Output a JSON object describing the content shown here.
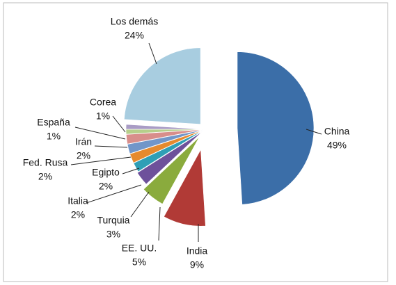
{
  "chart_data": {
    "type": "pie",
    "categories": [
      "China",
      "India",
      "EE. UU.",
      "Turquia",
      "Italia",
      "Egipto",
      "Fed. Rusa",
      "Irán",
      "España",
      "Corea",
      "Los demás"
    ],
    "values": [
      49,
      9,
      5,
      3,
      2,
      2,
      2,
      2,
      1,
      1,
      24
    ],
    "value_labels": [
      "49%",
      "9%",
      "5%",
      "3%",
      "2%",
      "2%",
      "2%",
      "2%",
      "1%",
      "1%",
      "24%"
    ],
    "colors": [
      "#3b6ea8",
      "#b13a36",
      "#8aab3d",
      "#6e519b",
      "#2f9fb6",
      "#e68a2e",
      "#7196c9",
      "#d88e8b",
      "#b6cf8b",
      "#a99cc5",
      "#a8cde0"
    ]
  }
}
